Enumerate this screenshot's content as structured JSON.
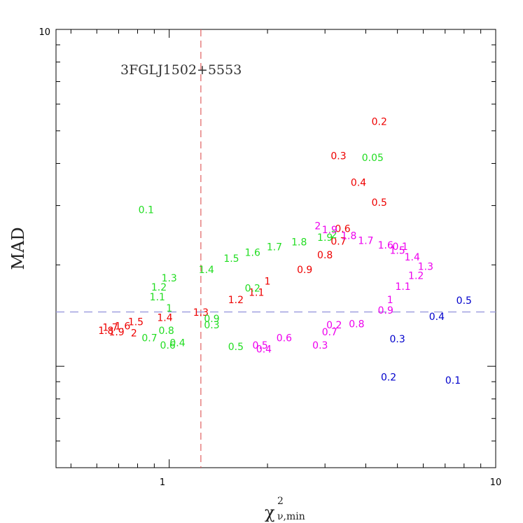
{
  "chart_data": {
    "type": "scatter",
    "title": "3FGLJ1502+5553",
    "xlabel": {
      "symbol": "χ",
      "superscript": "2",
      "subscript": "ν,min"
    },
    "ylabel": "MAD",
    "x_scale": "log",
    "y_scale": "log",
    "xlim": [
      0.45,
      10
    ],
    "ylim": [
      0.5,
      10
    ],
    "x_tick_labels": [
      "1",
      "10"
    ],
    "y_tick_labels": [
      "10"
    ],
    "grid": false,
    "reference_lines": [
      {
        "orientation": "vertical",
        "value": 1.25,
        "color": "#e06060",
        "style": "dashed"
      },
      {
        "orientation": "horizontal",
        "value": 1.45,
        "color": "#9999dd",
        "style": "dashed"
      }
    ],
    "series": [
      {
        "color": "#ee0000",
        "points": [
          {
            "label": "0.2",
            "x": 4.4,
            "y": 5.3
          },
          {
            "label": "0.3",
            "x": 3.3,
            "y": 4.2
          },
          {
            "label": "0.4",
            "x": 3.8,
            "y": 3.5
          },
          {
            "label": "0.5",
            "x": 4.4,
            "y": 3.05
          },
          {
            "label": "0.6",
            "x": 3.4,
            "y": 2.55
          },
          {
            "label": "0.7",
            "x": 3.3,
            "y": 2.34
          },
          {
            "label": "0.8",
            "x": 3.0,
            "y": 2.13
          },
          {
            "label": "0.9",
            "x": 2.6,
            "y": 1.93
          },
          {
            "label": "1",
            "x": 2.0,
            "y": 1.78
          },
          {
            "label": "1.1",
            "x": 1.85,
            "y": 1.65
          },
          {
            "label": "1.2",
            "x": 1.6,
            "y": 1.57
          },
          {
            "label": "1.3",
            "x": 1.25,
            "y": 1.44
          },
          {
            "label": "1.4",
            "x": 0.97,
            "y": 1.39
          },
          {
            "label": "1.5",
            "x": 0.79,
            "y": 1.35
          },
          {
            "label": "1.6",
            "x": 0.72,
            "y": 1.31
          },
          {
            "label": "1.7",
            "x": 0.66,
            "y": 1.3
          },
          {
            "label": "1.8",
            "x": 0.64,
            "y": 1.27
          },
          {
            "label": "1.9",
            "x": 0.69,
            "y": 1.26
          },
          {
            "label": "2",
            "x": 0.78,
            "y": 1.25
          }
        ]
      },
      {
        "color": "#22dd22",
        "points": [
          {
            "label": "0.05",
            "x": 4.2,
            "y": 4.15
          },
          {
            "label": "0.1",
            "x": 0.85,
            "y": 2.9
          },
          {
            "label": "1.9",
            "x": 3.0,
            "y": 2.4
          },
          {
            "label": "2",
            "x": 3.2,
            "y": 2.45
          },
          {
            "label": "1.8",
            "x": 2.5,
            "y": 2.33
          },
          {
            "label": "1.7",
            "x": 2.1,
            "y": 2.25
          },
          {
            "label": "1.6",
            "x": 1.8,
            "y": 2.17
          },
          {
            "label": "1.5",
            "x": 1.55,
            "y": 2.08
          },
          {
            "label": "1.4",
            "x": 1.3,
            "y": 1.93
          },
          {
            "label": "1.3",
            "x": 1.0,
            "y": 1.82
          },
          {
            "label": "1.2",
            "x": 0.93,
            "y": 1.71
          },
          {
            "label": "1.1",
            "x": 0.92,
            "y": 1.6
          },
          {
            "label": "1",
            "x": 1.0,
            "y": 1.48
          },
          {
            "label": "0.9",
            "x": 1.35,
            "y": 1.38
          },
          {
            "label": "0.3",
            "x": 1.35,
            "y": 1.32
          },
          {
            "label": "0.2",
            "x": 1.8,
            "y": 1.7
          },
          {
            "label": "0.8",
            "x": 0.98,
            "y": 1.27
          },
          {
            "label": "0.7",
            "x": 0.87,
            "y": 1.21
          },
          {
            "label": "0.6",
            "x": 0.99,
            "y": 1.15
          },
          {
            "label": "0.4",
            "x": 1.06,
            "y": 1.17
          },
          {
            "label": "0.5",
            "x": 1.6,
            "y": 1.14
          }
        ]
      },
      {
        "color": "#ee00ee",
        "points": [
          {
            "label": "2",
            "x": 2.85,
            "y": 2.6
          },
          {
            "label": "1.9",
            "x": 3.1,
            "y": 2.53
          },
          {
            "label": "1.8",
            "x": 3.55,
            "y": 2.43
          },
          {
            "label": "1.7",
            "x": 4.0,
            "y": 2.35
          },
          {
            "label": "1.6",
            "x": 4.6,
            "y": 2.28
          },
          {
            "label": "0.1",
            "x": 5.1,
            "y": 2.26
          },
          {
            "label": "1.5",
            "x": 5.0,
            "y": 2.2
          },
          {
            "label": "1.4",
            "x": 5.55,
            "y": 2.1
          },
          {
            "label": "1.3",
            "x": 6.1,
            "y": 1.97
          },
          {
            "label": "1.2",
            "x": 5.7,
            "y": 1.85
          },
          {
            "label": "1.1",
            "x": 5.2,
            "y": 1.72
          },
          {
            "label": "1",
            "x": 4.75,
            "y": 1.57
          },
          {
            "label": "0.9",
            "x": 4.6,
            "y": 1.46
          },
          {
            "label": "0.8",
            "x": 3.75,
            "y": 1.33
          },
          {
            "label": "0.7",
            "x": 3.1,
            "y": 1.26
          },
          {
            "label": "0.6",
            "x": 2.25,
            "y": 1.21
          },
          {
            "label": "0.5",
            "x": 1.9,
            "y": 1.15
          },
          {
            "label": "0.4",
            "x": 1.95,
            "y": 1.12
          },
          {
            "label": "0.3",
            "x": 2.9,
            "y": 1.15
          },
          {
            "label": "0.2",
            "x": 3.2,
            "y": 1.32
          }
        ]
      },
      {
        "color": "#0000cc",
        "points": [
          {
            "label": "0.5",
            "x": 8.0,
            "y": 1.56
          },
          {
            "label": "0.4",
            "x": 6.6,
            "y": 1.4
          },
          {
            "label": "0.3",
            "x": 5.0,
            "y": 1.2
          },
          {
            "label": "0.2",
            "x": 4.7,
            "y": 0.925
          },
          {
            "label": "0.1",
            "x": 7.4,
            "y": 0.905
          }
        ]
      }
    ]
  }
}
